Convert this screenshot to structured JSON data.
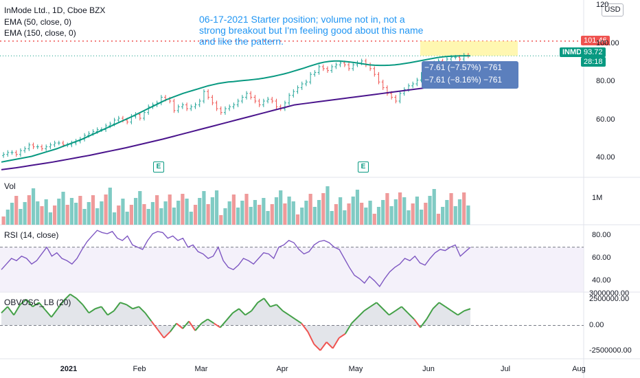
{
  "header": {
    "symbol_line": "InMode Ltd., 1D, Cboe BZX",
    "ema50": "EMA (50, close, 0)",
    "ema150": "EMA (150, close, 0)"
  },
  "annotation": "06-17-2021 Starter position; volume not in, not a strong breakout but I'm feeling good about this name and like the pattern.",
  "currency": "USD",
  "price_labels": {
    "stop": "101.46",
    "last": "93.72",
    "countdown": "28:18",
    "ticker": "INMD"
  },
  "position": {
    "line1": "−7.61 (−7.57%) −761",
    "line2": "−7.61 (−8.16%) −761"
  },
  "panes": {
    "volume": "Vol",
    "rsi": "RSI (14, close)",
    "obv": "OBVOSC_LB (20)"
  },
  "earnings_marker": "E",
  "colors": {
    "up": "#26a69a",
    "down": "#ef5350",
    "ema50": "#089981",
    "ema150": "#4a148c",
    "rsi": "#7e57c2",
    "annotation": "#2196f3"
  },
  "chart_data": [
    {
      "type": "candlestick",
      "title": "InMode Ltd., 1D, Cboe BZX",
      "x_ticks": [
        "2021",
        "Feb",
        "Mar",
        "Apr",
        "May",
        "Jun",
        "Jul",
        "Aug"
      ],
      "y_ticks": [
        "120",
        "100.00",
        "80.00",
        "60.00",
        "40.00"
      ],
      "ylim": [
        30,
        123
      ],
      "close": [
        42,
        43,
        43,
        42,
        44,
        45,
        47,
        46,
        46,
        45,
        46,
        47,
        48,
        48,
        47,
        47,
        48,
        49,
        50,
        52,
        53,
        54,
        55,
        55,
        57,
        58,
        60,
        61,
        60,
        59,
        62,
        63,
        61,
        64,
        67,
        68,
        69,
        72,
        71,
        70,
        65,
        67,
        68,
        66,
        67,
        68,
        70,
        75,
        72,
        69,
        66,
        64,
        66,
        67,
        68,
        70,
        72,
        74,
        72,
        70,
        68,
        70,
        71,
        70,
        67,
        66,
        69,
        73,
        75,
        77,
        79,
        80,
        84,
        85,
        88,
        87,
        86,
        88,
        89,
        90,
        89,
        87,
        89,
        90,
        91,
        89,
        87,
        84,
        80,
        77,
        74,
        72,
        70,
        74,
        76,
        78,
        79,
        81,
        84,
        86,
        88,
        90,
        91,
        90,
        92,
        93,
        93,
        92,
        94,
        93.72
      ],
      "series": [
        {
          "name": "EMA (50, close, 0)",
          "values": [
            38,
            38.5,
            39,
            39.5,
            40,
            40.5,
            41,
            41.8,
            42.6,
            43.4,
            44.2,
            45,
            46,
            47,
            48,
            49,
            50,
            51.2,
            52.4,
            53.6,
            54.8,
            56,
            57.2,
            58.4,
            59.6,
            60.8,
            62,
            63.3,
            64.6,
            65.9,
            67.2,
            68.5,
            69.8,
            71,
            72,
            73,
            74,
            74.8,
            75.6,
            76.4,
            77.2,
            78,
            78.6,
            79.2,
            79.6,
            80,
            80.2,
            80.5,
            80.8,
            81,
            81.3,
            81.6,
            82,
            82.5,
            83,
            83.6,
            84.2,
            84.9,
            85.7,
            86.5,
            87.3,
            88.2,
            89,
            89.8,
            90.4,
            90.8,
            91,
            91,
            90.8,
            90.5,
            90.2,
            89.8,
            89.4,
            89,
            88.8,
            88.7,
            88.7,
            88.8,
            89,
            89.3,
            89.7,
            90.1,
            90.6,
            91.1,
            91.6,
            92.1,
            92.6,
            93,
            93.3,
            93.5,
            93.6,
            93.7,
            93.7,
            93.72
          ]
        },
        {
          "name": "EMA (150, close, 0)",
          "values": [
            34,
            34.5,
            35,
            35.6,
            36.2,
            36.8,
            37.4,
            38,
            38.7,
            39.4,
            40.1,
            40.8,
            41.5,
            42.3,
            43.1,
            43.9,
            44.7,
            45.5,
            46.4,
            47.3,
            48.2,
            49.1,
            50,
            51,
            52,
            53,
            54,
            55,
            56,
            57,
            58,
            59,
            60,
            61,
            62,
            63,
            64,
            65,
            66,
            67,
            68,
            68.5,
            69,
            69.5,
            70,
            70.5,
            71,
            71.5,
            72,
            72.5,
            73,
            73.5,
            74,
            74.5,
            75,
            75.5,
            76,
            76.5,
            77,
            77.5,
            78,
            78.5,
            79,
            79.5,
            80
          ]
        }
      ]
    },
    {
      "type": "bar",
      "title": "Vol",
      "y_ticks": [
        "1M"
      ]
    },
    {
      "type": "line",
      "title": "RSI (14, close)",
      "y_ticks": [
        "80.00",
        "60.00",
        "40.00"
      ],
      "ylim": [
        30,
        90
      ],
      "values": [
        50,
        55,
        60,
        58,
        62,
        60,
        55,
        58,
        64,
        70,
        62,
        65,
        60,
        58,
        55,
        60,
        68,
        75,
        80,
        85,
        83,
        82,
        84,
        78,
        76,
        80,
        72,
        70,
        68,
        76,
        82,
        84,
        83,
        78,
        80,
        76,
        78,
        70,
        72,
        66,
        64,
        60,
        62,
        70,
        58,
        52,
        50,
        54,
        60,
        58,
        55,
        60,
        65,
        64,
        60,
        70,
        72,
        76,
        74,
        68,
        64,
        66,
        72,
        75,
        76,
        74,
        70,
        68,
        60,
        52,
        45,
        42,
        38,
        44,
        40,
        35,
        42,
        48,
        52,
        55,
        60,
        58,
        62,
        56,
        54,
        60,
        65,
        68,
        67,
        70,
        72,
        62,
        66,
        70
      ]
    },
    {
      "type": "line",
      "title": "OBVOSC_LB (20)",
      "y_ticks": [
        "3000000.00",
        "2500000.00",
        "0.00",
        "-2500000.00"
      ],
      "ylim": [
        -3200000,
        3200000
      ],
      "values": [
        1200000,
        1800000,
        1000000,
        2000000,
        2500000,
        1800000,
        2200000,
        1500000,
        800000,
        1600000,
        2400000,
        3000000,
        2600000,
        2000000,
        1200000,
        1600000,
        1800000,
        1000000,
        1400000,
        2200000,
        2000000,
        1600000,
        1800000,
        1200000,
        400000,
        -400000,
        -1200000,
        -600000,
        200000,
        -300000,
        400000,
        -500000,
        200000,
        600000,
        200000,
        -200000,
        500000,
        1200000,
        1600000,
        1000000,
        1400000,
        2200000,
        2600000,
        1800000,
        2000000,
        1400000,
        1000000,
        600000,
        200000,
        -600000,
        -1800000,
        -2400000,
        -1600000,
        -2200000,
        -1200000,
        -800000,
        200000,
        800000,
        1400000,
        1800000,
        2200000,
        1600000,
        1000000,
        1400000,
        1800000,
        1200000,
        600000,
        -200000,
        600000,
        1600000,
        2200000,
        1800000,
        1400000,
        1000000,
        1400000,
        1600000
      ]
    }
  ]
}
